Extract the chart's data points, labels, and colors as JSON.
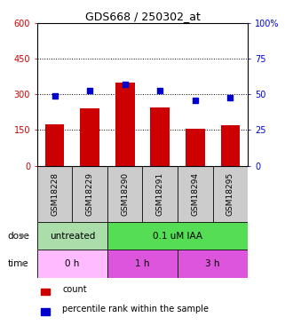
{
  "title": "GDS668 / 250302_at",
  "samples": [
    "GSM18228",
    "GSM18229",
    "GSM18290",
    "GSM18291",
    "GSM18294",
    "GSM18295"
  ],
  "bar_values": [
    175,
    240,
    350,
    245,
    155,
    170
  ],
  "dot_values": [
    49,
    53,
    57,
    53,
    46,
    48
  ],
  "bar_color": "#cc0000",
  "dot_color": "#0000cc",
  "ylim_left": [
    0,
    600
  ],
  "ylim_right": [
    0,
    100
  ],
  "yticks_left": [
    0,
    150,
    300,
    450,
    600
  ],
  "yticks_right": [
    0,
    25,
    50,
    75,
    100
  ],
  "ytick_labels_left": [
    "0",
    "150",
    "300",
    "450",
    "600"
  ],
  "ytick_labels_right": [
    "0",
    "25",
    "50",
    "75",
    "100%"
  ],
  "dose_labels": [
    {
      "text": "untreated",
      "span": 2,
      "color": "#aaddaa"
    },
    {
      "text": "0.1 uM IAA",
      "span": 4,
      "color": "#55dd55"
    }
  ],
  "time_labels": [
    {
      "text": "0 h",
      "span": 2,
      "color": "#ffbbff"
    },
    {
      "text": "1 h",
      "span": 2,
      "color": "#dd55dd"
    },
    {
      "text": "3 h",
      "span": 2,
      "color": "#dd55dd"
    }
  ],
  "dose_row_label": "dose",
  "time_row_label": "time",
  "legend_count": "count",
  "legend_pct": "percentile rank within the sample",
  "background_color": "#ffffff",
  "tick_color_left": "#cc0000",
  "tick_color_right": "#0000cc",
  "grid_yticks": [
    150,
    300,
    450
  ]
}
